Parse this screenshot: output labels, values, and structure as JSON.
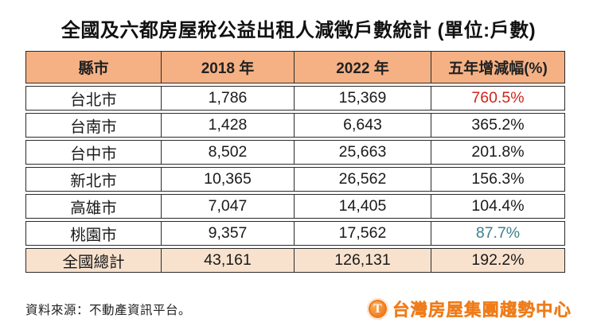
{
  "title": "全國及六都房屋稅公益出租人減徵戶數統計 (單位:戶數)",
  "colors": {
    "header_bg": "#f5b184",
    "total_bg": "#f8e2ce",
    "border": "#2b2b2b",
    "highlight_red": "#d0241c",
    "highlight_teal": "#3d818e",
    "logo_orange": "#ef7c1a"
  },
  "table": {
    "headers": [
      "縣市",
      "2018 年",
      "2022 年",
      "五年增減幅(%)"
    ],
    "rows": [
      {
        "city": "台北市",
        "y2018": "1,786",
        "y2022": "15,369",
        "change": "760.5%",
        "change_color": "#d0241c"
      },
      {
        "city": "台南市",
        "y2018": "1,428",
        "y2022": "6,643",
        "change": "365.2%",
        "change_color": "#1a1a1a"
      },
      {
        "city": "台中市",
        "y2018": "8,502",
        "y2022": "25,663",
        "change": "201.8%",
        "change_color": "#1a1a1a"
      },
      {
        "city": "新北市",
        "y2018": "10,365",
        "y2022": "26,562",
        "change": "156.3%",
        "change_color": "#1a1a1a"
      },
      {
        "city": "高雄市",
        "y2018": "7,047",
        "y2022": "14,405",
        "change": "104.4%",
        "change_color": "#1a1a1a"
      },
      {
        "city": "桃園市",
        "y2018": "9,357",
        "y2022": "17,562",
        "change": "87.7%",
        "change_color": "#3d818e"
      }
    ],
    "total": {
      "city": "全國總計",
      "y2018": "43,161",
      "y2022": "126,131",
      "change": "192.2%",
      "change_color": "#1a1a1a"
    }
  },
  "footer": {
    "source": "資料來源：不動產資訊平台。",
    "logo_letter": "T",
    "logo_text": "台灣房屋集團趨勢中心"
  },
  "chart_data": {
    "type": "table",
    "title": "全國及六都房屋稅公益出租人減徵戶數統計 (單位:戶數)",
    "columns": [
      "縣市",
      "2018 年",
      "2022 年",
      "五年增減幅(%)"
    ],
    "rows": [
      [
        "台北市",
        1786,
        15369,
        760.5
      ],
      [
        "台南市",
        1428,
        6643,
        365.2
      ],
      [
        "台中市",
        8502,
        25663,
        201.8
      ],
      [
        "新北市",
        10365,
        26562,
        156.3
      ],
      [
        "高雄市",
        7047,
        14405,
        104.4
      ],
      [
        "桃園市",
        9357,
        17562,
        87.7
      ],
      [
        "全國總計",
        43161,
        126131,
        192.2
      ]
    ],
    "value_unit": "戶數",
    "change_unit": "%",
    "source": "資料來源：不動產資訊平台。"
  }
}
